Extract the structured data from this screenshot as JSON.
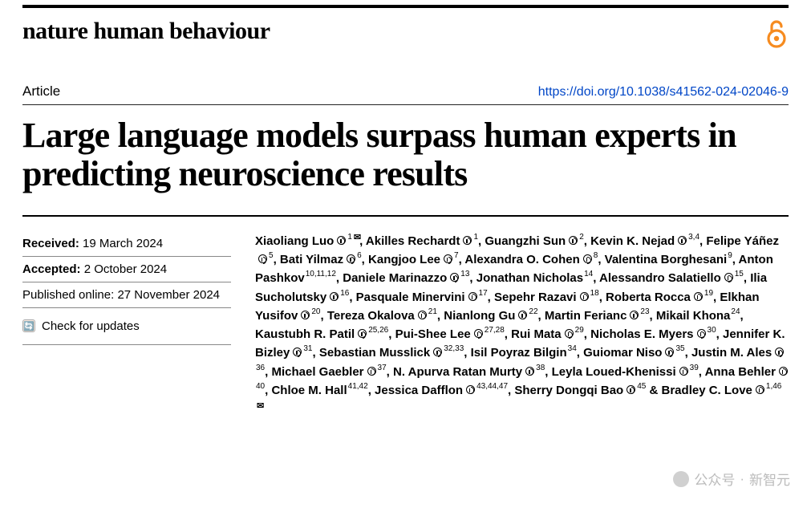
{
  "journal_name": "nature human behaviour",
  "article_type": "Article",
  "doi_link": "https://doi.org/10.1038/s41562-024-02046-9",
  "title": "Large language models surpass human experts in predicting neuroscience results",
  "colors": {
    "brand_orange": "#f68b1f",
    "doi_blue": "#0046c7",
    "rule_black": "#000000",
    "rule_grey": "#888888",
    "background": "#ffffff"
  },
  "typography": {
    "journal_fontsize": 30,
    "title_fontsize": 44,
    "meta_fontsize": 17,
    "body_fontsize": 15,
    "aff_fontsize": 10
  },
  "dates": {
    "received_label": "Received:",
    "received_value": "19 March 2024",
    "accepted_label": "Accepted:",
    "accepted_value": "2 October 2024",
    "published_label": "Published online:",
    "published_value": "27 November 2024"
  },
  "check_updates": "Check for updates",
  "authors": [
    {
      "name": "Xiaoliang Luo",
      "orcid": true,
      "aff": "1",
      "mail": true
    },
    {
      "name": "Akilles Rechardt",
      "orcid": true,
      "aff": "1"
    },
    {
      "name": "Guangzhi Sun",
      "orcid": true,
      "aff": "2"
    },
    {
      "name": "Kevin K. Nejad",
      "orcid": true,
      "aff": "3,4"
    },
    {
      "name": "Felipe Yáñez",
      "orcid": true,
      "aff": "5"
    },
    {
      "name": "Bati Yilmaz",
      "orcid": true,
      "aff": "6"
    },
    {
      "name": "Kangjoo Lee",
      "orcid": true,
      "aff": "7"
    },
    {
      "name": "Alexandra O. Cohen",
      "orcid": true,
      "aff": "8"
    },
    {
      "name": "Valentina Borghesani",
      "orcid": false,
      "aff": "9"
    },
    {
      "name": "Anton Pashkov",
      "orcid": false,
      "aff": "10,11,12"
    },
    {
      "name": "Daniele Marinazzo",
      "orcid": true,
      "aff": "13"
    },
    {
      "name": "Jonathan Nicholas",
      "orcid": false,
      "aff": "14"
    },
    {
      "name": "Alessandro Salatiello",
      "orcid": true,
      "aff": "15"
    },
    {
      "name": "Ilia Sucholutsky",
      "orcid": true,
      "aff": "16"
    },
    {
      "name": "Pasquale Minervini",
      "orcid": true,
      "aff": "17"
    },
    {
      "name": "Sepehr Razavi",
      "orcid": true,
      "aff": "18"
    },
    {
      "name": "Roberta Rocca",
      "orcid": true,
      "aff": "19"
    },
    {
      "name": "Elkhan Yusifov",
      "orcid": true,
      "aff": "20"
    },
    {
      "name": "Tereza Okalova",
      "orcid": true,
      "aff": "21"
    },
    {
      "name": "Nianlong Gu",
      "orcid": true,
      "aff": "22"
    },
    {
      "name": "Martin Ferianc",
      "orcid": true,
      "aff": "23"
    },
    {
      "name": "Mikail Khona",
      "orcid": false,
      "aff": "24"
    },
    {
      "name": "Kaustubh R. Patil",
      "orcid": true,
      "aff": "25,26"
    },
    {
      "name": "Pui-Shee Lee",
      "orcid": true,
      "aff": "27,28"
    },
    {
      "name": "Rui Mata",
      "orcid": true,
      "aff": "29"
    },
    {
      "name": "Nicholas E. Myers",
      "orcid": true,
      "aff": "30"
    },
    {
      "name": "Jennifer K. Bizley",
      "orcid": true,
      "aff": "31"
    },
    {
      "name": "Sebastian Musslick",
      "orcid": true,
      "aff": "32,33"
    },
    {
      "name": "Isil Poyraz Bilgin",
      "orcid": false,
      "aff": "34"
    },
    {
      "name": "Guiomar Niso",
      "orcid": true,
      "aff": "35"
    },
    {
      "name": "Justin M. Ales",
      "orcid": true,
      "aff": "36"
    },
    {
      "name": "Michael Gaebler",
      "orcid": true,
      "aff": "37"
    },
    {
      "name": "N. Apurva Ratan Murty",
      "orcid": true,
      "aff": "38"
    },
    {
      "name": "Leyla Loued-Khenissi",
      "orcid": true,
      "aff": "39"
    },
    {
      "name": "Anna Behler",
      "orcid": true,
      "aff": "40"
    },
    {
      "name": "Chloe M. Hall",
      "orcid": false,
      "aff": "41,42"
    },
    {
      "name": "Jessica Dafflon",
      "orcid": true,
      "aff": "43,44,47"
    },
    {
      "name": "Sherry Dongqi Bao",
      "orcid": true,
      "aff": "45",
      "amp": true
    },
    {
      "name": "Bradley C. Love",
      "orcid": true,
      "aff": "1,46",
      "mail": true
    }
  ],
  "watermark": {
    "label": "公众号",
    "source": "新智元"
  }
}
